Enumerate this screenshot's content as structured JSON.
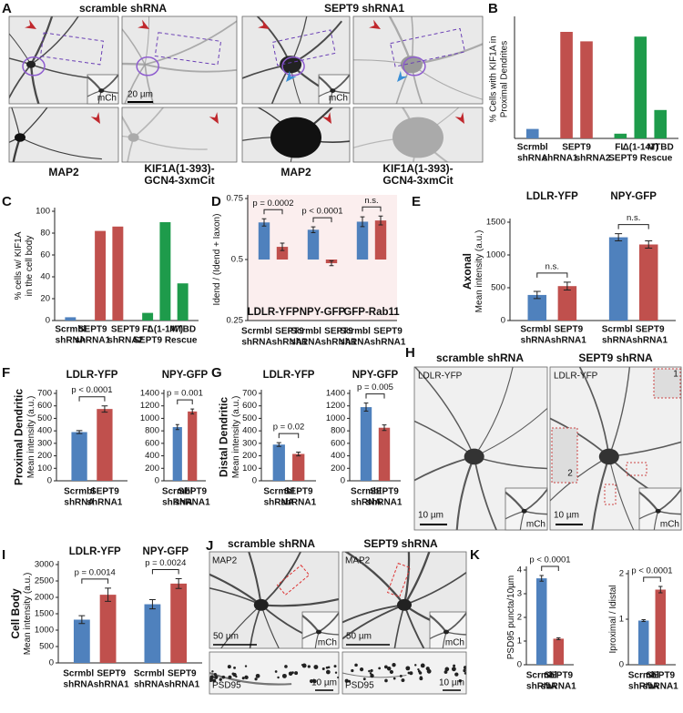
{
  "panel_letters": [
    "A",
    "B",
    "C",
    "D",
    "E",
    "F",
    "G",
    "H",
    "I",
    "J",
    "K"
  ],
  "micrographs": {
    "A": {
      "headers": [
        "scramble shRNA",
        "SEPT9 shRNA1"
      ],
      "captions": [
        [
          "MAP2"
        ],
        [
          "KIF1A(1-393)-",
          "GCN4-3xmCit"
        ],
        [
          "MAP2"
        ],
        [
          "KIF1A(1-393)-",
          "GCN4-3xmCit"
        ]
      ],
      "inset": "mCh",
      "scale": "20 µm"
    },
    "H": {
      "headers": [
        "scramble shRNA",
        "SEPT9 shRNA"
      ],
      "marker": "LDLR-YFP",
      "inset": "mCh",
      "scale": "10 µm",
      "zooms": [
        "1",
        "2"
      ]
    },
    "J": {
      "headers": [
        "scramble shRNA",
        "SEPT9 shRNA"
      ],
      "marker": "MAP2",
      "marker2": "PSD95",
      "inset": "mCh",
      "scale": "50 µm",
      "scale2": "10 µm"
    }
  },
  "chart_data": [
    {
      "type": "bar",
      "ylabel": [
        "% Cells with KIF1A in",
        "Proximal Dendrites"
      ],
      "ylim": [
        0,
        100
      ],
      "groups": [
        {
          "categories": [
            [
              "Scrmbl",
              "shRNA"
            ]
          ],
          "values": [
            8
          ],
          "colors": [
            "#4f81bd"
          ]
        },
        {
          "span_label": "SEPT9",
          "categories": [
            [
              "shRNA1"
            ],
            [
              "shRNA2"
            ]
          ],
          "values": [
            90,
            82
          ],
          "colors": [
            "#c0504d",
            "#c0504d"
          ]
        },
        {
          "categories": [
            [
              "FL"
            ],
            [
              "Δ(1-147)"
            ],
            [
              "MTBD"
            ]
          ],
          "footer": "SEPT9 Rescue",
          "values": [
            4,
            86,
            24
          ],
          "colors": [
            "#1e9b4b",
            "#1e9b4b",
            "#1e9b4b"
          ]
        }
      ]
    },
    {
      "type": "bar",
      "ylabel": [
        "% cells w/ KIF1A",
        "in the cell body"
      ],
      "ylim": [
        0,
        100
      ],
      "yticks": [
        0,
        20,
        40,
        60,
        80,
        100
      ],
      "groups": [
        {
          "categories": [
            [
              "Scrmbl",
              "shRNA"
            ]
          ],
          "values": [
            3
          ],
          "colors": [
            "#4f81bd"
          ]
        },
        {
          "categories": [
            [
              "SEPT9",
              "shRNA1"
            ],
            [
              "SEPT9",
              "shRNA2"
            ]
          ],
          "values": [
            82,
            86
          ],
          "colors": [
            "#c0504d",
            "#c0504d"
          ]
        },
        {
          "categories": [
            [
              "FL"
            ],
            [
              "Δ(1-147)"
            ],
            [
              "MTBD"
            ]
          ],
          "footer": "SEPT9 Rescue",
          "values": [
            7,
            90,
            34
          ],
          "colors": [
            "#1e9b4b",
            "#1e9b4b",
            "#1e9b4b"
          ]
        }
      ]
    },
    {
      "type": "bar",
      "ylabel": [
        "Idend / (Idend + Iaxon)"
      ],
      "ylim": [
        0.25,
        0.75
      ],
      "yticks": [
        0.25,
        0.5,
        0.75
      ],
      "baseline": 0.5,
      "groups": [
        {
          "title": "LDLR-YFP",
          "p_label": "p = 0.0002",
          "categories": [
            [
              "Scrmbl",
              "shRNA"
            ],
            [
              "SEPT9",
              "shRNA1"
            ]
          ],
          "values": [
            0.652,
            0.552
          ],
          "errors": [
            0.015,
            0.015
          ],
          "colors": [
            "#4f81bd",
            "#c0504d"
          ]
        },
        {
          "title": "NPY-GFP",
          "p_label": "p < 0.0001",
          "categories": [
            [
              "Scrmbl",
              "shRNA"
            ],
            [
              "SEPT9",
              "shRNA1"
            ]
          ],
          "values": [
            0.622,
            0.485
          ],
          "errors": [
            0.012,
            0.01
          ],
          "colors": [
            "#4f81bd",
            "#c0504d"
          ]
        },
        {
          "title": "GFP-Rab11",
          "p_label": "n.s.",
          "categories": [
            [
              "Scrmbl",
              "shRNA"
            ],
            [
              "SEPT9",
              "shRNA1"
            ]
          ],
          "values": [
            0.655,
            0.66
          ],
          "errors": [
            0.02,
            0.018
          ],
          "colors": [
            "#4f81bd",
            "#c0504d"
          ]
        }
      ]
    },
    {
      "type": "bar",
      "ylabel_title": "Axonal",
      "ylabel": [
        "Mean intensity (a.u.)"
      ],
      "ylim": [
        0,
        1500
      ],
      "yticks": [
        0,
        500,
        1000,
        1500
      ],
      "groups": [
        {
          "title": "LDLR-YFP",
          "p_label": "n.s.",
          "categories": [
            [
              "Scrmbl",
              "shRNA"
            ],
            [
              "SEPT9",
              "shRNA1"
            ]
          ],
          "values": [
            390,
            525
          ],
          "errors": [
            55,
            60
          ],
          "colors": [
            "#4f81bd",
            "#c0504d"
          ]
        },
        {
          "title": "NPY-GFP",
          "p_label": "n.s.",
          "categories": [
            [
              "Scrmbl",
              "shRNA"
            ],
            [
              "SEPT9",
              "shRNA1"
            ]
          ],
          "values": [
            1270,
            1160
          ],
          "errors": [
            55,
            55
          ],
          "colors": [
            "#4f81bd",
            "#c0504d"
          ]
        }
      ]
    },
    {
      "type": "bar",
      "ylabel_title": "Proximal Dendritic",
      "ylabel": [
        "Mean intensity (a.u.)"
      ],
      "ylim": [
        0,
        700
      ],
      "yticks": [
        0,
        100,
        200,
        300,
        400,
        500,
        600,
        700
      ],
      "groups": [
        {
          "title": "LDLR-YFP",
          "p_label": "p < 0.0001",
          "categories": [
            [
              "Scrmbl",
              "shRNA"
            ],
            [
              "SEPT9",
              "shRNA1"
            ]
          ],
          "values": [
            390,
            575
          ],
          "errors": [
            12,
            25
          ],
          "colors": [
            "#4f81bd",
            "#c0504d"
          ]
        }
      ]
    },
    {
      "type": "bar",
      "ylim": [
        0,
        1400
      ],
      "yticks": [
        0,
        200,
        400,
        600,
        800,
        1000,
        1200,
        1400
      ],
      "groups": [
        {
          "title": "NPY-GFP",
          "p_label": "p = 0.001",
          "categories": [
            [
              "Scrmbl",
              "shRNA"
            ],
            [
              "SEPT9",
              "shRNA1"
            ]
          ],
          "values": [
            860,
            1110
          ],
          "errors": [
            40,
            40
          ],
          "colors": [
            "#4f81bd",
            "#c0504d"
          ]
        }
      ]
    },
    {
      "type": "bar",
      "ylabel_title": "Distal Dendritic",
      "ylabel": [
        "Mean intensity (a.u.)"
      ],
      "ylim": [
        0,
        700
      ],
      "yticks": [
        0,
        100,
        200,
        300,
        400,
        500,
        600,
        700
      ],
      "groups": [
        {
          "title": "LDLR-YFP",
          "p_label": "p = 0.02",
          "categories": [
            [
              "Scrmbl",
              "shRNA"
            ],
            [
              "SEPT9",
              "shRNA1"
            ]
          ],
          "values": [
            290,
            215
          ],
          "errors": [
            15,
            15
          ],
          "colors": [
            "#4f81bd",
            "#c0504d"
          ]
        }
      ]
    },
    {
      "type": "bar",
      "ylim": [
        0,
        1400
      ],
      "yticks": [
        0,
        200,
        400,
        600,
        800,
        1000,
        1200,
        1400
      ],
      "groups": [
        {
          "title": "NPY-GFP",
          "p_label": "p = 0.005",
          "categories": [
            [
              "Scrmbl",
              "shRNA"
            ],
            [
              "SEPT9",
              "shRNA1"
            ]
          ],
          "values": [
            1180,
            850
          ],
          "errors": [
            65,
            45
          ],
          "colors": [
            "#4f81bd",
            "#c0504d"
          ]
        }
      ]
    },
    {
      "type": "bar",
      "ylabel_title": "Cell Body",
      "ylabel": [
        "Mean intensity (a.u.)"
      ],
      "ylim": [
        0,
        3000
      ],
      "yticks": [
        0,
        500,
        1000,
        1500,
        2000,
        2500,
        3000
      ],
      "groups": [
        {
          "title": "LDLR-YFP",
          "p_label": "p = 0.0014",
          "categories": [
            [
              "Scrmbl",
              "shRNA"
            ],
            [
              "SEPT9",
              "shRNA1"
            ]
          ],
          "values": [
            1320,
            2080
          ],
          "errors": [
            120,
            200
          ],
          "colors": [
            "#4f81bd",
            "#c0504d"
          ]
        },
        {
          "title": "NPY-GFP",
          "p_label": "p = 0.0024",
          "categories": [
            [
              "Scrmbl",
              "shRNA"
            ],
            [
              "SEPT9",
              "shRNA1"
            ]
          ],
          "values": [
            1790,
            2420
          ],
          "errors": [
            140,
            150
          ],
          "colors": [
            "#4f81bd",
            "#c0504d"
          ]
        }
      ]
    },
    {
      "type": "bar",
      "ylabel": [
        "PSD95 puncta/10µm"
      ],
      "ylim": [
        0,
        4
      ],
      "yticks": [
        0,
        1,
        2,
        3,
        4
      ],
      "groups": [
        {
          "p_label": "p < 0.0001",
          "categories": [
            [
              "Scrmbl",
              "shRNA"
            ],
            [
              "SEPT9",
              "shRNA1"
            ]
          ],
          "values": [
            3.65,
            1.1
          ],
          "errors": [
            0.12,
            0.04
          ],
          "colors": [
            "#4f81bd",
            "#c0504d"
          ]
        }
      ]
    },
    {
      "type": "bar",
      "ylabel": [
        "Iproximal / Idistal"
      ],
      "ylim": [
        0,
        2
      ],
      "yticks": [
        0,
        1,
        2
      ],
      "groups": [
        {
          "p_label": "p < 0.0001",
          "categories": [
            [
              "Scrmbl",
              "shRNA"
            ],
            [
              "SEPT9",
              "shRNA1"
            ]
          ],
          "values": [
            0.97,
            1.65
          ],
          "errors": [
            0.02,
            0.07
          ],
          "colors": [
            "#4f81bd",
            "#c0504d"
          ]
        }
      ]
    }
  ]
}
